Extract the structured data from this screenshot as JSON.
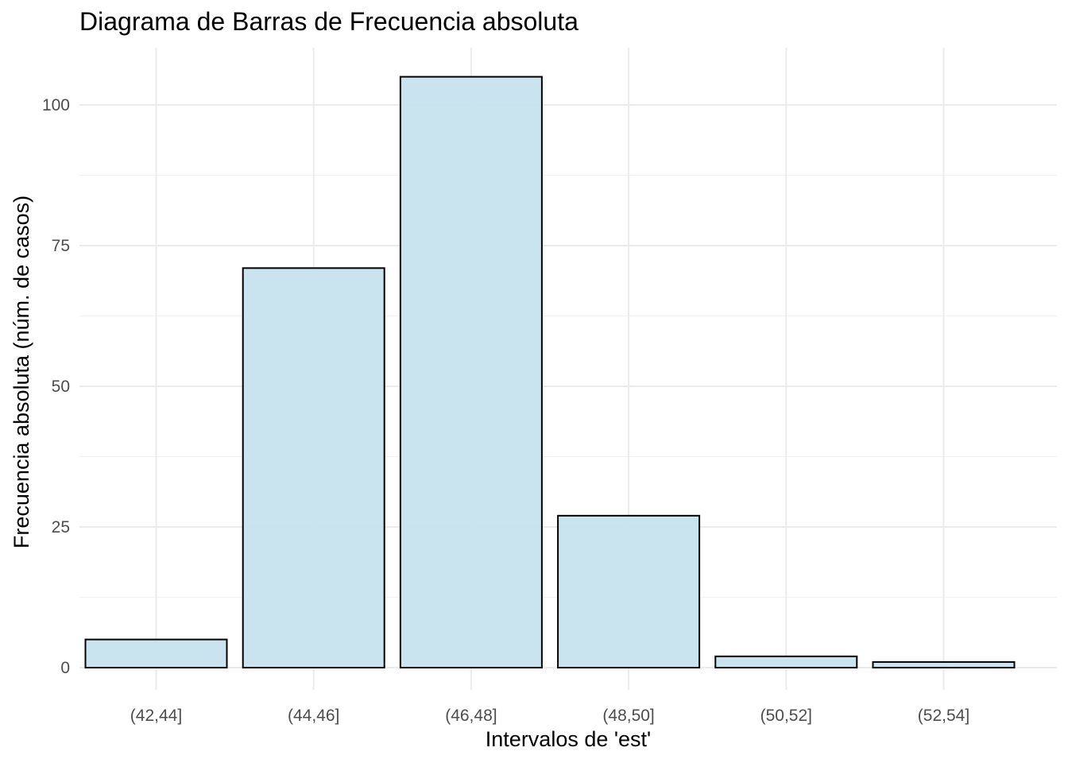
{
  "chart_data": {
    "type": "bar",
    "title": "Diagrama de Barras de Frecuencia absoluta",
    "xlabel": "Intervalos de 'est'",
    "ylabel": "Frecuencia absoluta (núm. de casos)",
    "categories": [
      "(42,44]",
      "(44,46]",
      "(46,48]",
      "(48,50]",
      "(50,52]",
      "(52,54]"
    ],
    "values": [
      5,
      71,
      105,
      27,
      2,
      1
    ],
    "ylim": [
      0,
      110
    ],
    "yticks": [
      0,
      25,
      50,
      75,
      100
    ],
    "grid": true,
    "bar_fill": "#c6e3ed",
    "bar_stroke": "#000000",
    "grid_color": "#ebebeb",
    "legend": "none"
  }
}
